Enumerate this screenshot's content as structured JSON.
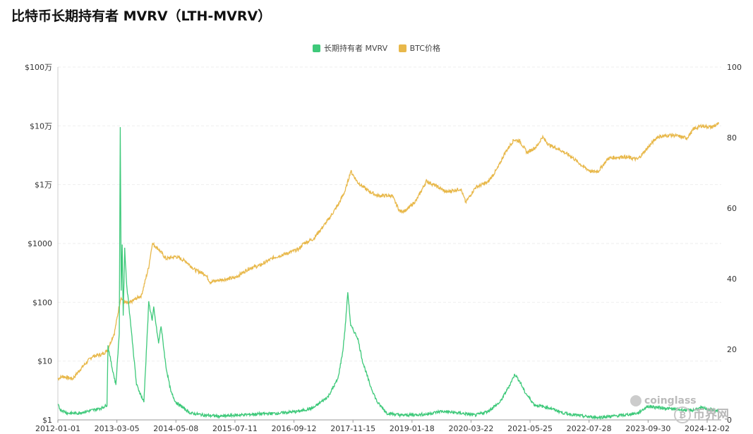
{
  "title": "比特币长期持有者 MVRV（LTH-MVRV）",
  "watermark": {
    "brand1": "coinglass",
    "brand2": "币界网"
  },
  "colors": {
    "mvrv": "#3ec97a",
    "price": "#e8b84a",
    "grid": "#eeeeee",
    "axis": "#cccccc"
  },
  "chart_data": {
    "type": "line",
    "title": "比特币长期持有者 MVRV（LTH-MVRV）",
    "legend": [
      "长期持有者 MVRV",
      "BTC价格"
    ],
    "legend_position": "top-center",
    "x_tick_labels": [
      "2012-01-01",
      "2013-03-05",
      "2014-05-08",
      "2015-07-11",
      "2016-09-12",
      "2017-11-15",
      "2019-01-18",
      "2020-03-22",
      "2021-05-25",
      "2022-07-28",
      "2023-09-30",
      "2024-12-02"
    ],
    "x_range": [
      2012.0,
      2025.5
    ],
    "y_left": {
      "scale": "log",
      "range": [
        1,
        1000000
      ],
      "tick_values": [
        1,
        10,
        100,
        1000,
        10000,
        100000,
        1000000
      ],
      "tick_labels": [
        "$1",
        "$10",
        "$100",
        "$1000",
        "$1万",
        "$10万",
        "$100万"
      ]
    },
    "y_right": {
      "scale": "linear",
      "range": [
        0,
        100
      ],
      "tick_values": [
        0,
        20,
        40,
        60,
        80,
        100
      ],
      "tick_labels": [
        "0",
        "20",
        "40",
        "60",
        "80",
        "100"
      ]
    },
    "series": [
      {
        "name": "BTC价格",
        "axis": "left",
        "color": "#e8b84a",
        "x": [
          2012.0,
          2012.1,
          2012.3,
          2012.5,
          2012.7,
          2012.9,
          2013.0,
          2013.15,
          2013.28,
          2013.35,
          2013.45,
          2013.55,
          2013.7,
          2013.85,
          2013.92,
          2014.05,
          2014.2,
          2014.4,
          2014.6,
          2014.8,
          2015.0,
          2015.1,
          2015.3,
          2015.6,
          2015.9,
          2016.1,
          2016.4,
          2016.6,
          2016.9,
          2017.0,
          2017.2,
          2017.5,
          2017.7,
          2017.85,
          2017.96,
          2018.1,
          2018.3,
          2018.5,
          2018.8,
          2018.96,
          2019.1,
          2019.3,
          2019.5,
          2019.7,
          2019.9,
          2020.2,
          2020.3,
          2020.5,
          2020.75,
          2020.95,
          2021.1,
          2021.28,
          2021.4,
          2021.55,
          2021.75,
          2021.86,
          2022.0,
          2022.2,
          2022.45,
          2022.7,
          2022.87,
          2023.0,
          2023.2,
          2023.5,
          2023.8,
          2024.0,
          2024.2,
          2024.5,
          2024.8,
          2024.95,
          2025.1,
          2025.3,
          2025.45
        ],
        "y": [
          5,
          5.5,
          5,
          8,
          12,
          13,
          15,
          30,
          120,
          100,
          95,
          110,
          130,
          400,
          1000,
          800,
          550,
          600,
          500,
          350,
          300,
          220,
          240,
          260,
          380,
          420,
          580,
          650,
          800,
          1000,
          1200,
          2500,
          4500,
          8000,
          17000,
          11000,
          8000,
          6500,
          6500,
          3500,
          3700,
          5500,
          11500,
          9500,
          7500,
          8500,
          5000,
          9000,
          11000,
          19000,
          35000,
          58000,
          55000,
          35000,
          45000,
          65000,
          47000,
          40000,
          30000,
          20000,
          16500,
          17000,
          28000,
          30000,
          27000,
          42000,
          65000,
          70000,
          62000,
          90000,
          100000,
          95000,
          108000
        ]
      },
      {
        "name": "长期持有者 MVRV",
        "axis": "left",
        "color": "#3ec97a",
        "x": [
          2012.0,
          2012.05,
          2012.2,
          2012.4,
          2012.6,
          2012.9,
          2013.0,
          2013.02,
          2013.1,
          2013.18,
          2013.25,
          2013.27,
          2013.29,
          2013.31,
          2013.33,
          2013.36,
          2013.4,
          2013.45,
          2013.5,
          2013.6,
          2013.75,
          2013.85,
          2013.92,
          2013.95,
          2014.05,
          2014.1,
          2014.2,
          2014.3,
          2014.4,
          2014.55,
          2014.7,
          2015.0,
          2015.3,
          2015.6,
          2016.0,
          2016.5,
          2016.9,
          2017.2,
          2017.5,
          2017.7,
          2017.8,
          2017.85,
          2017.9,
          2017.96,
          2018.0,
          2018.1,
          2018.2,
          2018.35,
          2018.5,
          2018.7,
          2019.0,
          2019.5,
          2019.8,
          2020.2,
          2020.5,
          2020.75,
          2021.0,
          2021.2,
          2021.3,
          2021.4,
          2021.5,
          2021.7,
          2022.0,
          2022.3,
          2022.7,
          2023.0,
          2023.5,
          2023.8,
          2024.0,
          2024.3,
          2024.6,
          2024.9,
          2025.1,
          2025.3,
          2025.45
        ],
        "y": [
          1.8,
          1.5,
          1.3,
          1.3,
          1.4,
          1.6,
          1.8,
          18,
          8,
          4,
          30,
          90000,
          150,
          1000,
          60,
          800,
          200,
          80,
          30,
          4,
          2,
          100,
          50,
          80,
          20,
          40,
          8,
          3,
          2,
          1.6,
          1.3,
          1.2,
          1.15,
          1.2,
          1.25,
          1.3,
          1.4,
          1.6,
          2.5,
          5,
          15,
          40,
          150,
          40,
          35,
          25,
          10,
          4,
          2,
          1.3,
          1.2,
          1.25,
          1.4,
          1.3,
          1.2,
          1.4,
          2,
          4,
          6,
          4.5,
          3,
          1.8,
          1.6,
          1.3,
          1.15,
          1.1,
          1.2,
          1.3,
          1.7,
          1.6,
          1.5,
          1.45,
          1.6,
          1.5,
          1.4
        ]
      }
    ]
  }
}
